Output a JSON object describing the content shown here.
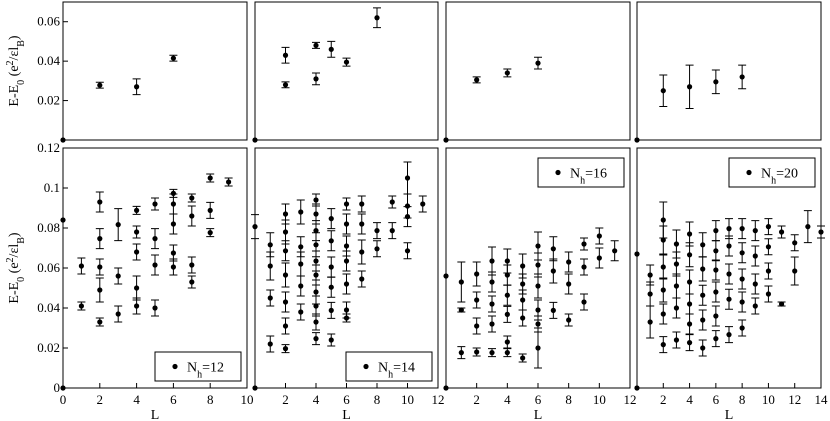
{
  "chart_data": [
    {
      "type": "scatter",
      "color": "#000000",
      "xlim": [
        0,
        10
      ],
      "ylim": [
        0,
        0.07
      ],
      "xticks": [],
      "yticks": [
        0.02,
        0.04,
        0.06
      ],
      "ylabel": [
        "E-E",
        "0",
        " (e",
        "2",
        "/εl",
        "B",
        ")"
      ],
      "x": [
        0,
        2,
        4,
        6
      ],
      "y": [
        0,
        0.0278,
        0.027,
        0.0415
      ],
      "err": [
        0,
        0.0015,
        0.004,
        0.0015
      ]
    },
    {
      "type": "scatter",
      "color": "#000000",
      "xlim": [
        0,
        12
      ],
      "ylim": [
        0,
        0.07
      ],
      "xticks": [],
      "yticks": [],
      "x": [
        0,
        2,
        2,
        4,
        4,
        5,
        6,
        8
      ],
      "y": [
        0,
        0.028,
        0.043,
        0.048,
        0.031,
        0.046,
        0.0395,
        0.062
      ],
      "err": [
        0,
        0.0015,
        0.004,
        0.0015,
        0.003,
        0.004,
        0.002,
        0.005
      ]
    },
    {
      "type": "scatter",
      "color": "#000000",
      "xlim": [
        0,
        12
      ],
      "ylim": [
        0,
        0.07
      ],
      "xticks": [],
      "yticks": [],
      "x": [
        0,
        2,
        4,
        6
      ],
      "y": [
        0,
        0.0305,
        0.034,
        0.039
      ],
      "err": [
        0,
        0.0015,
        0.002,
        0.003
      ]
    },
    {
      "type": "scatter",
      "color": "#000000",
      "xlim": [
        0,
        14
      ],
      "ylim": [
        0,
        0.07
      ],
      "xticks": [],
      "yticks": [],
      "x": [
        0,
        2,
        4,
        6,
        8
      ],
      "y": [
        0,
        0.025,
        0.027,
        0.0295,
        0.032
      ],
      "err": [
        0,
        0.008,
        0.011,
        0.006,
        0.006
      ]
    },
    {
      "type": "scatter",
      "color": "#000000",
      "xlim": [
        0,
        10
      ],
      "ylim": [
        0,
        0.12
      ],
      "xticks": [
        0,
        2,
        4,
        6,
        8,
        10
      ],
      "yticks": [
        0,
        0.02,
        0.04,
        0.06,
        0.08,
        0.1,
        0.12
      ],
      "ylabel": [
        "E-E",
        "0",
        " (e",
        "2",
        "/εl",
        "B",
        ")"
      ],
      "x_label": "L",
      "legend": [
        "N",
        "h",
        "=12"
      ],
      "legend_position": "lower right",
      "x": [
        0,
        0,
        1,
        1,
        2,
        2,
        2,
        2,
        2,
        3,
        3,
        3,
        4,
        4,
        4,
        4,
        4,
        5,
        5,
        5,
        5,
        6,
        6,
        6,
        6,
        6,
        7,
        7,
        7,
        7,
        8,
        8,
        8,
        9
      ],
      "y": [
        0,
        0.084,
        0.061,
        0.041,
        0.093,
        0.0747,
        0.0605,
        0.049,
        0.033,
        0.0817,
        0.056,
        0.037,
        0.0888,
        0.078,
        0.068,
        0.05,
        0.041,
        0.092,
        0.0747,
        0.0615,
        0.04,
        0.0973,
        0.092,
        0.082,
        0.0675,
        0.0605,
        0.095,
        0.086,
        0.0615,
        0.053,
        0.105,
        0.0888,
        0.0777,
        0.103
      ],
      "err": [
        0,
        0,
        0.004,
        0.002,
        0.005,
        0.005,
        0.004,
        0.006,
        0.002,
        0.008,
        0.004,
        0.004,
        0.002,
        0.003,
        0.004,
        0.006,
        0.004,
        0.003,
        0.005,
        0.005,
        0.004,
        0.002,
        0.005,
        0.005,
        0.004,
        0.004,
        0.002,
        0.005,
        0.004,
        0.003,
        0.002,
        0.004,
        0.002,
        0.002
      ]
    },
    {
      "type": "scatter",
      "color": "#000000",
      "xlim": [
        0,
        12
      ],
      "ylim": [
        0,
        0.12
      ],
      "xticks": [
        2,
        4,
        6,
        8,
        10,
        12
      ],
      "yticks": [],
      "x_label": "L",
      "legend": [
        "N",
        "h",
        "=14"
      ],
      "legend_position": "lower right",
      "x": [
        0,
        0,
        1,
        1,
        1,
        1,
        2,
        2,
        2,
        2,
        2,
        2,
        2,
        3,
        3,
        3,
        3,
        3,
        4,
        4,
        4,
        4,
        4,
        4,
        4,
        4,
        4,
        4,
        5,
        5,
        5,
        5,
        5,
        5,
        6,
        6,
        6,
        6,
        6,
        6,
        6,
        7,
        7,
        7,
        7,
        8,
        8,
        9,
        9,
        10,
        10,
        10,
        10,
        11
      ],
      "y": [
        0,
        0.0807,
        0.0716,
        0.061,
        0.045,
        0.022,
        0.087,
        0.078,
        0.0686,
        0.0565,
        0.043,
        0.031,
        0.0197,
        0.088,
        0.0706,
        0.062,
        0.051,
        0.038,
        0.094,
        0.087,
        0.0787,
        0.0716,
        0.0635,
        0.0565,
        0.048,
        0.041,
        0.033,
        0.0247,
        0.0847,
        0.0736,
        0.0605,
        0.0504,
        0.0388,
        0.024,
        0.092,
        0.082,
        0.071,
        0.0635,
        0.052,
        0.039,
        0.035,
        0.092,
        0.082,
        0.068,
        0.0545,
        0.0787,
        0.0696,
        0.093,
        0.0787,
        0.105,
        0.091,
        0.0857,
        0.0686,
        0.092
      ],
      "err": [
        0,
        0.006,
        0.006,
        0.007,
        0.004,
        0.004,
        0.005,
        0.006,
        0.005,
        0.006,
        0.005,
        0.004,
        0.002,
        0.006,
        0.005,
        0.006,
        0.005,
        0.004,
        0.003,
        0.005,
        0.005,
        0.006,
        0.005,
        0.005,
        0.006,
        0.005,
        0.004,
        0.003,
        0.005,
        0.005,
        0.005,
        0.005,
        0.004,
        0.003,
        0.003,
        0.005,
        0.005,
        0.005,
        0.005,
        0.004,
        0.002,
        0.004,
        0.005,
        0.006,
        0.004,
        0.004,
        0.004,
        0.003,
        0.004,
        0.008,
        0.006,
        0.005,
        0.004,
        0.004
      ]
    },
    {
      "type": "scatter",
      "color": "#000000",
      "xlim": [
        0,
        12
      ],
      "ylim": [
        0,
        0.12
      ],
      "xticks": [
        2,
        4,
        6,
        8,
        10,
        12
      ],
      "yticks": [],
      "x_label": "L",
      "legend": [
        "N",
        "h",
        "=16"
      ],
      "legend_position": "upper right",
      "x": [
        0,
        0,
        1,
        1,
        1,
        2,
        2,
        2,
        2,
        3,
        3,
        3,
        3,
        3,
        4,
        4,
        4,
        4,
        4,
        4,
        5,
        5,
        5,
        5,
        5,
        6,
        6,
        6,
        6,
        6,
        6,
        7,
        7,
        7,
        8,
        8,
        8,
        9,
        9,
        9,
        10,
        10,
        11
      ],
      "y": [
        0,
        0.056,
        0.053,
        0.039,
        0.0177,
        0.057,
        0.044,
        0.031,
        0.018,
        0.0635,
        0.053,
        0.042,
        0.032,
        0.0177,
        0.0635,
        0.0565,
        0.0464,
        0.0368,
        0.023,
        0.0177,
        0.061,
        0.052,
        0.044,
        0.035,
        0.015,
        0.071,
        0.0615,
        0.051,
        0.039,
        0.032,
        0.02,
        0.0696,
        0.0585,
        0.0388,
        0.063,
        0.052,
        0.034,
        0.072,
        0.0605,
        0.043,
        0.076,
        0.065,
        0.0686
      ],
      "err": [
        0,
        0,
        0.01,
        0.001,
        0.003,
        0.006,
        0.004,
        0.004,
        0.002,
        0.007,
        0.005,
        0.004,
        0.004,
        0.002,
        0.006,
        0.005,
        0.005,
        0.004,
        0.003,
        0.002,
        0.006,
        0.005,
        0.005,
        0.004,
        0.002,
        0.007,
        0.006,
        0.006,
        0.005,
        0.004,
        0.01,
        0.006,
        0.006,
        0.004,
        0.005,
        0.005,
        0.003,
        0.003,
        0.004,
        0.004,
        0.004,
        0.005,
        0.005
      ]
    },
    {
      "type": "scatter",
      "color": "#000000",
      "xlim": [
        0,
        14
      ],
      "ylim": [
        0,
        0.12
      ],
      "xticks": [
        2,
        4,
        6,
        8,
        10,
        12,
        14
      ],
      "yticks": [],
      "x_label": "L",
      "legend": [
        "N",
        "h",
        "=20"
      ],
      "legend_position": "upper right",
      "x": [
        0,
        0,
        1,
        1,
        1,
        2,
        2,
        2,
        2,
        2,
        2,
        3,
        3,
        3,
        3,
        3,
        4,
        4,
        4,
        4,
        4,
        4,
        5,
        5,
        5,
        5,
        5,
        6,
        6,
        6,
        6,
        6,
        6,
        7,
        7,
        7,
        7,
        7,
        8,
        8,
        8,
        8,
        8,
        9,
        9,
        9,
        9,
        10,
        10,
        10,
        10,
        11,
        11,
        12,
        12,
        13,
        14
      ],
      "y": [
        0,
        0.067,
        0.0565,
        0.047,
        0.033,
        0.084,
        0.074,
        0.0605,
        0.049,
        0.037,
        0.0217,
        0.072,
        0.062,
        0.051,
        0.04,
        0.024,
        0.077,
        0.0666,
        0.053,
        0.042,
        0.032,
        0.0227,
        0.0716,
        0.0595,
        0.0464,
        0.034,
        0.02,
        0.0787,
        0.0686,
        0.059,
        0.048,
        0.036,
        0.0247,
        0.0797,
        0.071,
        0.057,
        0.0444,
        0.0267,
        0.0797,
        0.0676,
        0.0545,
        0.043,
        0.03,
        0.0787,
        0.066,
        0.052,
        0.041,
        0.0807,
        0.0706,
        0.0585,
        0.047,
        0.078,
        0.042,
        0.0726,
        0.0585,
        0.0807,
        0.078
      ],
      "err": [
        0,
        0,
        0.005,
        0.006,
        0.008,
        0.009,
        0.007,
        0.006,
        0.006,
        0.005,
        0.004,
        0.007,
        0.006,
        0.006,
        0.005,
        0.004,
        0.006,
        0.006,
        0.006,
        0.005,
        0.005,
        0.004,
        0.006,
        0.006,
        0.005,
        0.005,
        0.004,
        0.005,
        0.005,
        0.005,
        0.005,
        0.005,
        0.004,
        0.005,
        0.005,
        0.005,
        0.005,
        0.004,
        0.005,
        0.005,
        0.005,
        0.005,
        0.004,
        0.005,
        0.005,
        0.005,
        0.004,
        0.004,
        0.004,
        0.004,
        0.004,
        0.003,
        0.001,
        0.004,
        0.007,
        0.008,
        0.003
      ]
    }
  ]
}
